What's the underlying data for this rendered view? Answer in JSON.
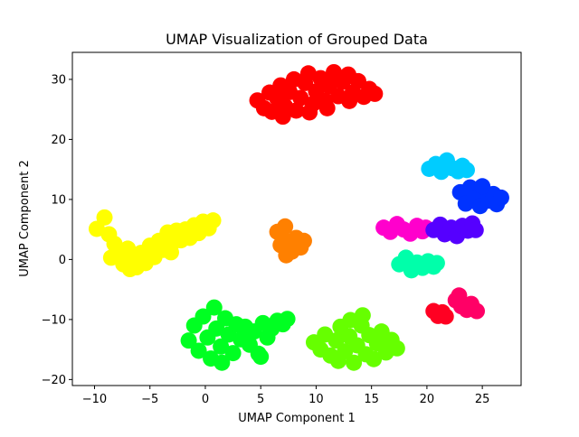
{
  "chart_data": {
    "type": "scatter",
    "title": "UMAP Visualization of Grouped Data",
    "xlabel": "UMAP Component 1",
    "ylabel": "UMAP Component 2",
    "xlim": [
      -12,
      28.5
    ],
    "ylim": [
      -21,
      34.5
    ],
    "xticks": [
      -10,
      -5,
      0,
      5,
      10,
      15,
      20,
      25
    ],
    "yticks": [
      -20,
      -10,
      0,
      10,
      20,
      30
    ],
    "grid": false,
    "legend": "none",
    "series": [
      {
        "color": "#ff0000",
        "points": [
          [
            4.7,
            26.5
          ],
          [
            5.3,
            25.2
          ],
          [
            5.8,
            27.8
          ],
          [
            6.0,
            24.6
          ],
          [
            6.5,
            26.8
          ],
          [
            6.8,
            29.0
          ],
          [
            7.2,
            25.5
          ],
          [
            7.6,
            27.9
          ],
          [
            8.0,
            30.0
          ],
          [
            8.2,
            24.8
          ],
          [
            8.6,
            26.9
          ],
          [
            9.0,
            29.4
          ],
          [
            9.3,
            31.0
          ],
          [
            9.7,
            25.9
          ],
          [
            10.0,
            28.0
          ],
          [
            10.4,
            30.2
          ],
          [
            10.8,
            26.5
          ],
          [
            11.2,
            28.9
          ],
          [
            11.6,
            31.2
          ],
          [
            12.0,
            27.2
          ],
          [
            12.4,
            29.6
          ],
          [
            12.9,
            30.8
          ],
          [
            13.3,
            27.8
          ],
          [
            13.8,
            29.7
          ],
          [
            14.3,
            27.1
          ],
          [
            14.8,
            28.4
          ],
          [
            15.3,
            27.6
          ],
          [
            7.0,
            23.8
          ],
          [
            9.4,
            24.5
          ],
          [
            11.0,
            25.2
          ],
          [
            13.0,
            26.4
          ]
        ]
      },
      {
        "color": "#ffff00",
        "points": [
          [
            -9.8,
            5.1
          ],
          [
            -9.1,
            7.0
          ],
          [
            -8.7,
            4.2
          ],
          [
            -8.2,
            2.6
          ],
          [
            -7.8,
            0.9
          ],
          [
            -7.4,
            -0.8
          ],
          [
            -7.0,
            1.8
          ],
          [
            -6.6,
            0.1
          ],
          [
            -6.2,
            -1.3
          ],
          [
            -5.8,
            1.1
          ],
          [
            -5.4,
            -0.6
          ],
          [
            -5.0,
            2.3
          ],
          [
            -4.6,
            0.4
          ],
          [
            -4.2,
            3.1
          ],
          [
            -3.8,
            1.6
          ],
          [
            -3.4,
            4.5
          ],
          [
            -3.0,
            2.7
          ],
          [
            -2.6,
            4.8
          ],
          [
            -2.2,
            3.2
          ],
          [
            -1.8,
            5.0
          ],
          [
            -1.4,
            3.6
          ],
          [
            -1.0,
            5.7
          ],
          [
            -0.6,
            4.4
          ],
          [
            -0.2,
            6.3
          ],
          [
            0.3,
            5.2
          ],
          [
            0.7,
            6.5
          ],
          [
            -8.5,
            0.3
          ],
          [
            -6.8,
            -1.6
          ],
          [
            -3.1,
            1.2
          ]
        ]
      },
      {
        "color": "#ff8000",
        "points": [
          [
            6.5,
            4.6
          ],
          [
            6.8,
            2.4
          ],
          [
            7.2,
            5.5
          ],
          [
            7.5,
            3.0
          ],
          [
            7.8,
            1.3
          ],
          [
            8.2,
            3.6
          ],
          [
            8.6,
            2.0
          ],
          [
            8.9,
            3.1
          ],
          [
            7.3,
            0.7
          ]
        ]
      },
      {
        "color": "#00ff22",
        "points": [
          [
            -1.5,
            -13.5
          ],
          [
            -1.0,
            -11.0
          ],
          [
            -0.6,
            -15.2
          ],
          [
            -0.2,
            -9.5
          ],
          [
            0.2,
            -13.0
          ],
          [
            0.5,
            -16.5
          ],
          [
            0.8,
            -8.0
          ],
          [
            1.0,
            -11.5
          ],
          [
            1.4,
            -14.5
          ],
          [
            1.8,
            -9.8
          ],
          [
            2.1,
            -12.5
          ],
          [
            2.5,
            -15.6
          ],
          [
            2.8,
            -10.8
          ],
          [
            3.2,
            -13.3
          ],
          [
            3.6,
            -11.2
          ],
          [
            4.0,
            -14.2
          ],
          [
            4.4,
            -12.0
          ],
          [
            4.8,
            -15.7
          ],
          [
            5.2,
            -10.6
          ],
          [
            5.6,
            -13.0
          ],
          [
            6.0,
            -11.5
          ],
          [
            6.5,
            -10.2
          ],
          [
            7.0,
            -10.8
          ],
          [
            7.4,
            -9.9
          ],
          [
            5.0,
            -16.2
          ],
          [
            1.5,
            -17.2
          ]
        ]
      },
      {
        "color": "#66ff00",
        "points": [
          [
            9.8,
            -13.8
          ],
          [
            10.4,
            -15.0
          ],
          [
            10.8,
            -12.5
          ],
          [
            11.3,
            -16.0
          ],
          [
            11.8,
            -13.5
          ],
          [
            12.2,
            -11.2
          ],
          [
            12.6,
            -15.3
          ],
          [
            13.0,
            -12.8
          ],
          [
            13.4,
            -17.2
          ],
          [
            13.7,
            -14.3
          ],
          [
            14.1,
            -11.0
          ],
          [
            14.5,
            -15.8
          ],
          [
            14.8,
            -12.6
          ],
          [
            15.2,
            -16.6
          ],
          [
            15.5,
            -14.0
          ],
          [
            15.9,
            -12.0
          ],
          [
            16.3,
            -15.5
          ],
          [
            16.8,
            -13.4
          ],
          [
            17.3,
            -14.8
          ],
          [
            14.2,
            -9.3
          ],
          [
            13.1,
            -10.1
          ],
          [
            12.0,
            -16.9
          ]
        ]
      },
      {
        "color": "#00ffaa",
        "points": [
          [
            17.5,
            -0.8
          ],
          [
            18.1,
            0.3
          ],
          [
            18.6,
            -1.8
          ],
          [
            19.1,
            -0.5
          ],
          [
            19.6,
            -1.4
          ],
          [
            20.1,
            -0.3
          ],
          [
            20.6,
            -1.2
          ],
          [
            20.9,
            -0.6
          ]
        ]
      },
      {
        "color": "#ff00cc",
        "points": [
          [
            16.1,
            5.3
          ],
          [
            16.7,
            4.6
          ],
          [
            17.3,
            5.9
          ],
          [
            17.9,
            5.0
          ],
          [
            18.5,
            4.3
          ],
          [
            19.1,
            5.6
          ],
          [
            19.6,
            4.7
          ],
          [
            19.9,
            5.3
          ]
        ]
      },
      {
        "color": "#5500ff",
        "points": [
          [
            20.6,
            4.9
          ],
          [
            21.2,
            5.8
          ],
          [
            21.6,
            4.2
          ],
          [
            22.2,
            5.3
          ],
          [
            22.7,
            3.9
          ],
          [
            23.2,
            5.6
          ],
          [
            23.7,
            4.8
          ],
          [
            24.1,
            6.0
          ],
          [
            24.4,
            4.9
          ]
        ]
      },
      {
        "color": "#00ccff",
        "points": [
          [
            20.2,
            15.1
          ],
          [
            20.8,
            15.9
          ],
          [
            21.3,
            14.6
          ],
          [
            21.8,
            16.5
          ],
          [
            22.3,
            15.2
          ],
          [
            22.8,
            14.7
          ],
          [
            23.2,
            15.6
          ],
          [
            23.6,
            14.9
          ]
        ]
      },
      {
        "color": "#0033ff",
        "points": [
          [
            23.0,
            11.2
          ],
          [
            23.5,
            9.3
          ],
          [
            23.9,
            12.0
          ],
          [
            24.3,
            10.1
          ],
          [
            24.8,
            8.9
          ],
          [
            25.2,
            11.3
          ],
          [
            25.6,
            9.8
          ],
          [
            26.0,
            10.9
          ],
          [
            26.3,
            9.2
          ],
          [
            26.7,
            10.3
          ],
          [
            25.0,
            12.2
          ]
        ]
      },
      {
        "color": "#ff0066",
        "points": [
          [
            22.6,
            -6.8
          ],
          [
            23.1,
            -7.8
          ],
          [
            23.6,
            -8.4
          ],
          [
            24.0,
            -7.4
          ],
          [
            24.5,
            -8.6
          ],
          [
            22.9,
            -6.0
          ]
        ]
      },
      {
        "color": "#ff0022",
        "points": [
          [
            20.6,
            -8.6
          ],
          [
            21.0,
            -9.4
          ],
          [
            21.4,
            -8.8
          ],
          [
            21.7,
            -9.5
          ]
        ]
      }
    ]
  }
}
